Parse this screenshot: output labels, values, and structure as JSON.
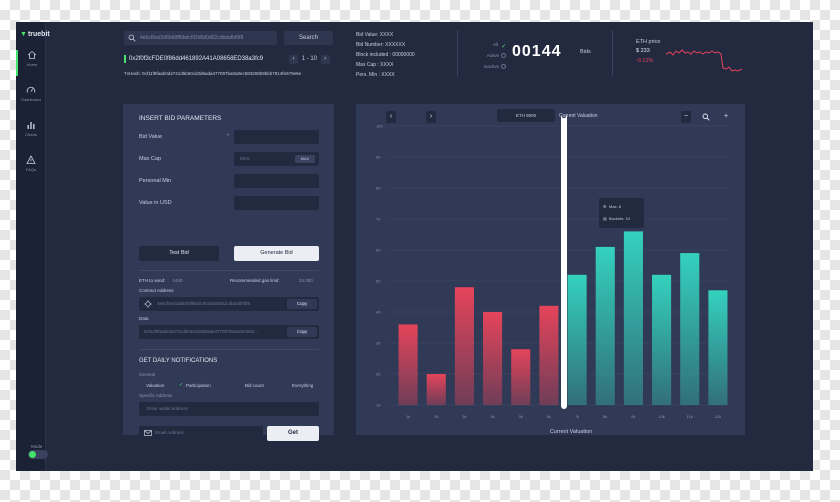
{
  "app": {
    "logo_text": "truebit",
    "accent": "#46e36a"
  },
  "sidebar": {
    "items": [
      {
        "label": "Home",
        "icon": "home-icon"
      },
      {
        "label": "Dashboard",
        "icon": "gauge-icon"
      },
      {
        "label": "Charts",
        "icon": "bar-chart-icon"
      },
      {
        "label": "FAQs",
        "icon": "help-icon"
      }
    ],
    "mode_label": "Mode"
  },
  "header": {
    "search_value": "4e6cf0ed2d6bb0ff6bdc6f2d0d0d02cdbdafbf0f8",
    "search_label": "Search",
    "address": "0x2f0f3cFDE0f86dd461892A41A08658ED38a3fc9",
    "pager": {
      "text": "1 - 10",
      "prev": "‹",
      "next": "›"
    },
    "txhash": "TxHash: 0xf11f9faab0d4741d5b60cd3d6ada477097ba0a0ec583208b9bbb7814fe679e6e"
  },
  "bid_info": [
    "Bid Value: XXXX",
    "Bid Number: XXXXXX",
    "Block included : 00000000",
    "Max Cap : XXXX",
    "Pers. Min : XXXX"
  ],
  "status": {
    "options": [
      "All",
      "Active",
      "Inactive"
    ],
    "selected": "All"
  },
  "counter": {
    "value": "00144",
    "label": "Bids"
  },
  "eth": {
    "title": "ETH price",
    "price": "$ 233",
    "change": "-0.12%",
    "change_color": "#e5445a"
  },
  "form": {
    "title": "INSERT BID PARAMETERS",
    "bid_value_label": "Bid Value",
    "required_mark": "*",
    "max_cap_label": "Max Cap",
    "max_cap_placeholder": "MAX",
    "max_cap_tag": "MAX",
    "personal_min_label": "Personal Min",
    "value_usd_label": "Value in USD",
    "test_bid_label": "Test Bid",
    "generate_bid_label": "Generate Bid",
    "eth_to_send_label": "ETH to send:",
    "eth_to_send_value": "1440",
    "gas_label": "Recommended gas limit:",
    "gas_value": "24.000",
    "contract_label": "Contract Address",
    "contract_value": "4e6cf0ed2d6bb0ff6bdc6f2d0d0d02cdbdafbf0f8",
    "data_label": "Data",
    "data_value": "0xf11f9faab0d4741d5b60cd3d6ada477097ba0a0ec583…",
    "copy_label": "Copy",
    "notify_title": "GET DAILY NOTIFICATIONS",
    "general_label": "General",
    "checks": [
      {
        "label": "Valuation",
        "checked": false
      },
      {
        "label": "Participation",
        "checked": true
      },
      {
        "label": "Bid count",
        "checked": false
      },
      {
        "label": "Everything",
        "checked": false
      }
    ],
    "specific_label": "Specific Address",
    "wallet_placeholder": "Enter wallet address",
    "email_placeholder": "Email Address",
    "get_label": "Get"
  },
  "chart_data": {
    "type": "bar",
    "categories": [
      "1k",
      "2k",
      "3k",
      "4k",
      "5k",
      "6k",
      "7k",
      "8k",
      "9k",
      "10k",
      "11k",
      "12k"
    ],
    "values": [
      36,
      20,
      48,
      40,
      28,
      42,
      52,
      61,
      66,
      52,
      59,
      47
    ],
    "ylim": [
      10,
      100
    ],
    "yticks": [
      10,
      20,
      30,
      40,
      50,
      60,
      70,
      80,
      90,
      100
    ],
    "xlabel": "Current Valuation",
    "ylabel": "",
    "grid": true,
    "colors": {
      "below": "#e5445a",
      "above": "#34d1bf"
    },
    "marker_label": "Current Valuation",
    "marker_tag": "ETH 9000",
    "tooltip": [
      "Max: 8",
      "Buckets: 10"
    ]
  }
}
